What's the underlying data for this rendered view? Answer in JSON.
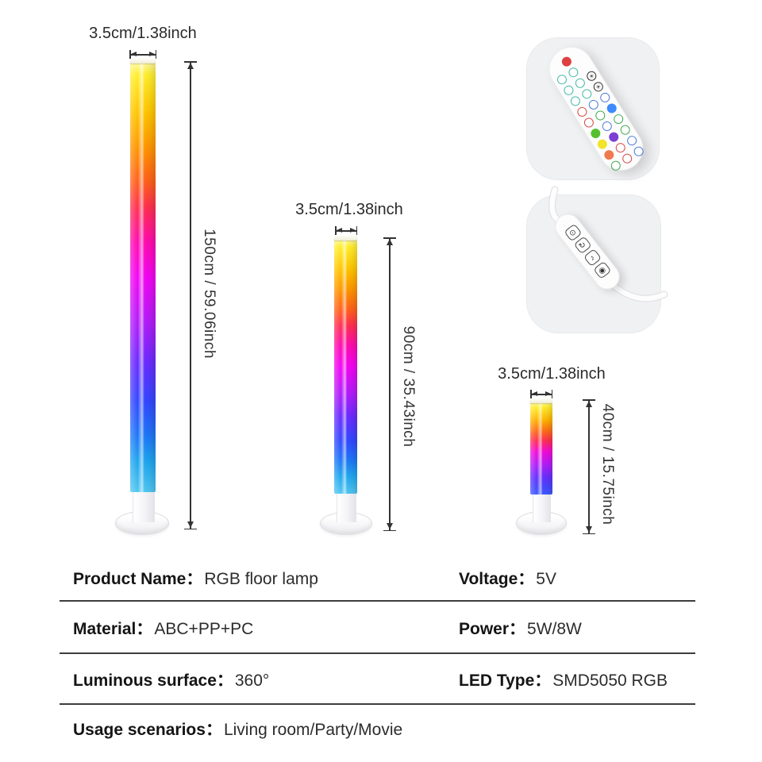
{
  "lamps": [
    {
      "name": "floor-lamp-150cm",
      "width_label": "3.5cm/1.38inch",
      "height_label": "150cm / 59.06inch"
    },
    {
      "name": "floor-lamp-90cm",
      "width_label": "3.5cm/1.38inch",
      "height_label": "90cm / 35.43inch"
    },
    {
      "name": "floor-lamp-40cm",
      "width_label": "3.5cm/1.38inch",
      "height_label": "40cm / 15.75inch"
    }
  ],
  "colors": {
    "lamp_gradient_tall": [
      "#fff9a8 0%",
      "#ffee2e 3%",
      "#ffc400 12%",
      "#ff9500 20%",
      "#ff5f1c 28%",
      "#ff2f52 34%",
      "#ff0bb0 42%",
      "#f305f3 50%",
      "#b01df9 61%",
      "#6a2cff 70%",
      "#3348ff 79%",
      "#1e78f7 87%",
      "#20a6ef 93%",
      "#51c6f0 100%"
    ],
    "lamp_gradient_small": [
      "#fff9a8 0%",
      "#ffee2e 6%",
      "#ffb300 20%",
      "#ff6a1a 32%",
      "#ff2f52 42%",
      "#f30ad9 54%",
      "#b01df9 68%",
      "#6430ff 82%",
      "#4746ff 92%",
      "#3f5bff 100%"
    ],
    "dimension_line": "#333333",
    "card_background": "#f0f1f3"
  },
  "accessories": {
    "remote": {
      "name": "rgb-remote-control",
      "buttons": [
        {
          "t": "none",
          "c": ""
        },
        {
          "t": "solid",
          "c": "#dd4040"
        },
        {
          "t": "none",
          "c": ""
        },
        {
          "t": "ring",
          "c": "#46b9a9"
        },
        {
          "t": "ring",
          "c": "#46b9a9"
        },
        {
          "t": "none",
          "c": ""
        },
        {
          "t": "ring",
          "c": "#46b9a9"
        },
        {
          "t": "ring",
          "c": "#46b9a9"
        },
        {
          "t": "sun",
          "c": "#333333"
        },
        {
          "t": "ring",
          "c": "#46b9a9"
        },
        {
          "t": "ring",
          "c": "#46b9a9"
        },
        {
          "t": "sun",
          "c": "#333333"
        },
        {
          "t": "ring",
          "c": "#d94a4a"
        },
        {
          "t": "ring",
          "c": "#4a7bd9"
        },
        {
          "t": "ring",
          "c": "#4a7bd9"
        },
        {
          "t": "ring",
          "c": "#d94a4a"
        },
        {
          "t": "ring",
          "c": "#44aa55"
        },
        {
          "t": "solid",
          "c": "#3d8bfd"
        },
        {
          "t": "solid",
          "c": "#55c02f"
        },
        {
          "t": "ring",
          "c": "#4a7bd9"
        },
        {
          "t": "ring",
          "c": "#44aa55"
        },
        {
          "t": "solid",
          "c": "#f3e32a"
        },
        {
          "t": "solid",
          "c": "#7b3fd4"
        },
        {
          "t": "ring",
          "c": "#44aa55"
        },
        {
          "t": "solid",
          "c": "#ee7a4f"
        },
        {
          "t": "ring",
          "c": "#d94a4a"
        },
        {
          "t": "ring",
          "c": "#4a7bd9"
        },
        {
          "t": "ring",
          "c": "#44aa55"
        },
        {
          "t": "ring",
          "c": "#d94a4a"
        },
        {
          "t": "ring",
          "c": "#4a7bd9"
        }
      ]
    },
    "controller": {
      "name": "inline-usb-controller",
      "buttons": [
        {
          "glyph": "⊙",
          "name": "brightness-button-icon"
        },
        {
          "glyph": "↻",
          "name": "power-button-icon"
        },
        {
          "glyph": "♪",
          "name": "music-mode-button-icon"
        },
        {
          "glyph": "◉",
          "name": "mic-button-icon"
        }
      ]
    }
  },
  "specs": {
    "separator": "：",
    "rows": [
      {
        "left_label": "Product Name",
        "left_value": "RGB floor lamp",
        "right_label": "Voltage",
        "right_value": "5V"
      },
      {
        "left_label": "Material",
        "left_value": "ABC+PP+PC",
        "right_label": "Power",
        "right_value": "5W/8W"
      },
      {
        "left_label": "Luminous surface",
        "left_value": "360°",
        "right_label": "LED Type",
        "right_value": "SMD5050 RGB"
      },
      {
        "left_label": "Usage scenarios",
        "left_value": "Living room/Party/Movie",
        "right_label": "",
        "right_value": ""
      }
    ]
  }
}
